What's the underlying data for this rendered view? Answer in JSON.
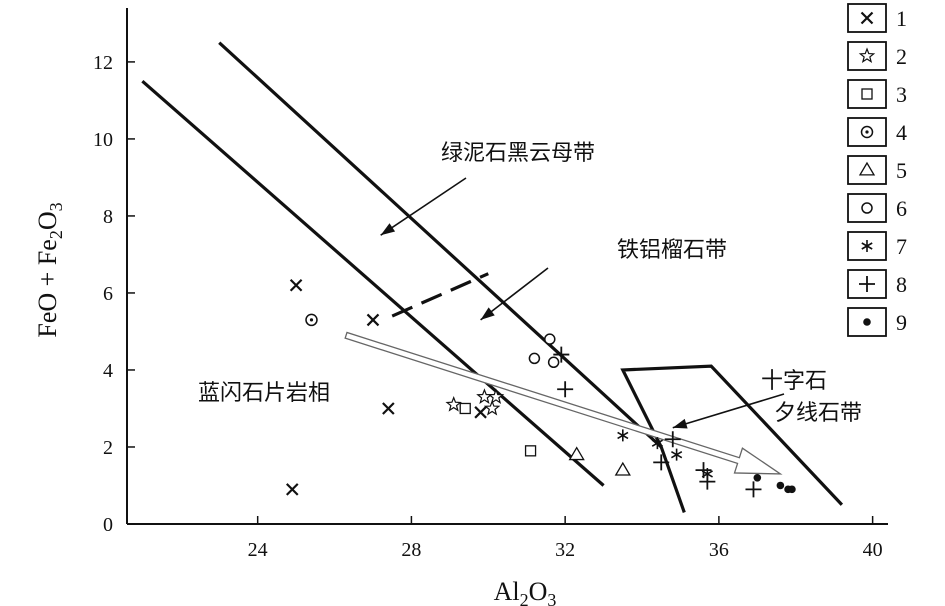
{
  "chart_data": {
    "type": "scatter",
    "xlabel_main": "Al",
    "xlabel_sub1": "2",
    "xlabel_mid": "O",
    "xlabel_sub2": "3",
    "ylabel_a": "FeO + Fe",
    "ylabel_sub1": "2",
    "ylabel_b": "O",
    "ylabel_sub2": "3",
    "xlim": [
      20.6,
      40.4
    ],
    "ylim": [
      0,
      13.4
    ],
    "x_ticks": [
      24,
      28,
      32,
      36,
      40
    ],
    "y_ticks": [
      0,
      2,
      4,
      6,
      8,
      10,
      12
    ],
    "regions": [
      {
        "label": "绿泥石黑云母带",
        "arrow_to": [
          27.2,
          7.5
        ]
      },
      {
        "label": "铁铝榴石带",
        "arrow_to": [
          29.8,
          5.3
        ]
      },
      {
        "label": "十字石",
        "arrow_to": null
      },
      {
        "label": "夕线石带",
        "arrow_to": [
          34.8,
          2.5
        ]
      },
      {
        "label": "蓝闪石片岩相",
        "arrow_to": null
      }
    ],
    "boundary_lines": [
      {
        "style": "solid",
        "points": [
          [
            21.0,
            11.5
          ],
          [
            33.0,
            1.0
          ]
        ]
      },
      {
        "style": "solid",
        "points": [
          [
            23.0,
            12.5
          ],
          [
            34.5,
            2.0
          ],
          [
            35.1,
            0.3
          ]
        ]
      },
      {
        "style": "dashed",
        "points": [
          [
            27.5,
            5.4
          ],
          [
            30.0,
            6.5
          ]
        ]
      },
      {
        "style": "solid",
        "points": [
          [
            34.5,
            2.0
          ],
          [
            33.5,
            4.0
          ],
          [
            35.8,
            4.1
          ],
          [
            39.2,
            0.5
          ]
        ]
      }
    ],
    "trend_arrow": {
      "from": [
        26.3,
        4.9
      ],
      "to": [
        37.6,
        1.3
      ]
    },
    "series": [
      {
        "name": "1",
        "marker": "x",
        "points": [
          [
            25.0,
            6.2
          ],
          [
            27.0,
            5.3
          ],
          [
            27.4,
            3.0
          ],
          [
            24.9,
            0.9
          ],
          [
            29.8,
            2.9
          ]
        ]
      },
      {
        "name": "2",
        "marker": "star",
        "points": [
          [
            29.1,
            3.1
          ],
          [
            29.9,
            3.3
          ],
          [
            30.2,
            3.3
          ],
          [
            30.1,
            3.0
          ]
        ]
      },
      {
        "name": "3",
        "marker": "square",
        "points": [
          [
            29.4,
            3.0
          ],
          [
            31.1,
            1.9
          ]
        ]
      },
      {
        "name": "4",
        "marker": "dotcircle",
        "points": [
          [
            25.4,
            5.3
          ]
        ]
      },
      {
        "name": "5",
        "marker": "triangle",
        "points": [
          [
            32.3,
            1.8
          ],
          [
            33.5,
            1.4
          ]
        ]
      },
      {
        "name": "6",
        "marker": "circle",
        "points": [
          [
            31.2,
            4.3
          ],
          [
            31.6,
            4.8
          ],
          [
            31.7,
            4.2
          ]
        ]
      },
      {
        "name": "7",
        "marker": "asterisk",
        "points": [
          [
            33.5,
            2.3
          ],
          [
            34.4,
            2.1
          ],
          [
            34.9,
            1.8
          ],
          [
            35.7,
            1.3
          ]
        ]
      },
      {
        "name": "8",
        "marker": "plus",
        "points": [
          [
            31.9,
            4.4
          ],
          [
            32.0,
            3.5
          ],
          [
            34.5,
            1.6
          ],
          [
            34.8,
            2.2
          ],
          [
            35.6,
            1.4
          ],
          [
            35.7,
            1.1
          ],
          [
            36.9,
            0.9
          ]
        ]
      },
      {
        "name": "9",
        "marker": "dot",
        "points": [
          [
            37.0,
            1.2
          ],
          [
            37.6,
            1.0
          ],
          [
            37.8,
            0.9
          ],
          [
            37.9,
            0.9
          ]
        ]
      }
    ],
    "legend": [
      "1",
      "2",
      "3",
      "4",
      "5",
      "6",
      "7",
      "8",
      "9"
    ],
    "legend_placement": "right",
    "grid": false
  }
}
